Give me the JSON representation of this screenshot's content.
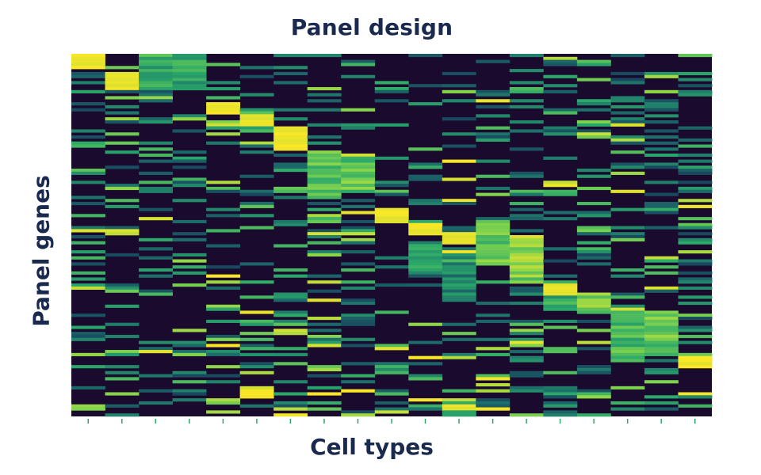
{
  "chart_data": {
    "type": "heatmap",
    "title": "Panel design",
    "xlabel": "Cell types",
    "ylabel": "Panel genes",
    "n_cell_types": 19,
    "n_genes": 120,
    "x_ticks_labeled": false,
    "colormap": [
      "#1a0b2e",
      "#173a5a",
      "#1d6f6a",
      "#2aa86a",
      "#7fd34e",
      "#fde725"
    ],
    "low_expression": 0.0,
    "high_expression": 1.0,
    "marker_blocks": [
      {
        "cell_type": 1,
        "gene_start": 0,
        "gene_end": 5,
        "level": 1.0
      },
      {
        "cell_type": 2,
        "gene_start": 6,
        "gene_end": 12,
        "level": 1.0
      },
      {
        "cell_type": 3,
        "gene_start": 0,
        "gene_end": 12,
        "level": 0.75
      },
      {
        "cell_type": 4,
        "gene_start": 2,
        "gene_end": 12,
        "level": 0.7
      },
      {
        "cell_type": 5,
        "gene_start": 16,
        "gene_end": 20,
        "level": 1.0
      },
      {
        "cell_type": 6,
        "gene_start": 20,
        "gene_end": 24,
        "level": 1.0
      },
      {
        "cell_type": 7,
        "gene_start": 24,
        "gene_end": 32,
        "level": 1.0
      },
      {
        "cell_type": 8,
        "gene_start": 32,
        "gene_end": 48,
        "level": 0.85
      },
      {
        "cell_type": 9,
        "gene_start": 33,
        "gene_end": 46,
        "level": 0.85
      },
      {
        "cell_type": 10,
        "gene_start": 51,
        "gene_end": 56,
        "level": 1.0
      },
      {
        "cell_type": 11,
        "gene_start": 56,
        "gene_end": 60,
        "level": 1.0
      },
      {
        "cell_type": 11,
        "gene_start": 62,
        "gene_end": 73,
        "level": 0.7
      },
      {
        "cell_type": 12,
        "gene_start": 59,
        "gene_end": 63,
        "level": 1.0
      },
      {
        "cell_type": 12,
        "gene_start": 64,
        "gene_end": 82,
        "level": 0.6
      },
      {
        "cell_type": 13,
        "gene_start": 55,
        "gene_end": 70,
        "level": 0.85
      },
      {
        "cell_type": 14,
        "gene_start": 61,
        "gene_end": 76,
        "level": 0.9
      },
      {
        "cell_type": 15,
        "gene_start": 76,
        "gene_end": 80,
        "level": 1.0
      },
      {
        "cell_type": 15,
        "gene_start": 80,
        "gene_end": 85,
        "level": 0.75
      },
      {
        "cell_type": 16,
        "gene_start": 79,
        "gene_end": 86,
        "level": 0.9
      },
      {
        "cell_type": 17,
        "gene_start": 85,
        "gene_end": 101,
        "level": 0.8
      },
      {
        "cell_type": 18,
        "gene_start": 86,
        "gene_end": 100,
        "level": 0.85
      },
      {
        "cell_type": 19,
        "gene_start": 100,
        "gene_end": 104,
        "level": 1.0
      },
      {
        "cell_type": 6,
        "gene_start": 111,
        "gene_end": 114,
        "level": 1.0
      },
      {
        "cell_type": 12,
        "gene_start": 116,
        "gene_end": 118,
        "level": 1.0
      }
    ],
    "background_noise_seed": 7
  }
}
